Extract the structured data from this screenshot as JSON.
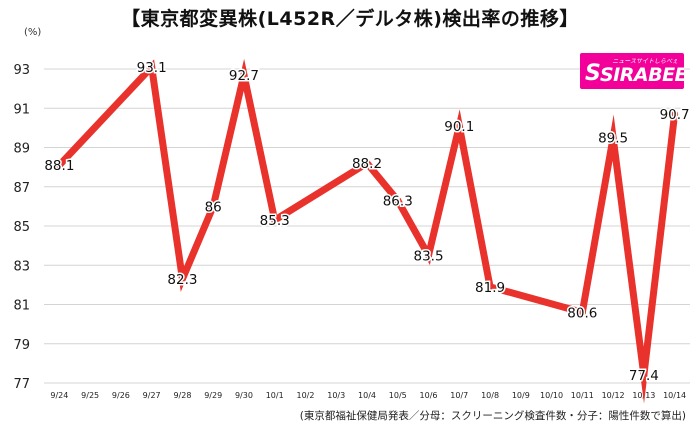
{
  "header": {
    "title": "【東京都変異株(L452R／デルタ株)検出率の推移】",
    "unit": "(%)",
    "source": "(東京都福祉保健局発表／分母：スクリーニング検査件数・分子：陽性件数で算出)"
  },
  "logo": {
    "word": "SIRABEE",
    "mark": "S",
    "tagline": "ニュースサイトしらべぇ"
  },
  "colors": {
    "line": "#e8322b",
    "grid": "#d4d4d4"
  },
  "chart_data": {
    "type": "line",
    "title": "【東京都変異株(L452R／デルタ株)検出率の推移】",
    "ylabel": "(%)",
    "xlabel": "",
    "ylim": [
      77,
      93
    ],
    "yticks": [
      77,
      79,
      81,
      83,
      85,
      87,
      89,
      91,
      93
    ],
    "grid": true,
    "categories": [
      "9/24",
      "9/25",
      "9/26",
      "9/27",
      "9/28",
      "9/29",
      "9/30",
      "10/1",
      "10/2",
      "10/3",
      "10/4",
      "10/5",
      "10/6",
      "10/7",
      "10/8",
      "10/9",
      "10/10",
      "10/11",
      "10/12",
      "10/13",
      "10/14"
    ],
    "points": [
      {
        "x": "9/24",
        "y": 88.1,
        "label": "88.1"
      },
      {
        "x": "9/27",
        "y": 93.1,
        "label": "93.1"
      },
      {
        "x": "9/28",
        "y": 82.3,
        "label": "82.3"
      },
      {
        "x": "9/29",
        "y": 86,
        "label": "86"
      },
      {
        "x": "9/30",
        "y": 92.7,
        "label": "92.7"
      },
      {
        "x": "10/1",
        "y": 85.3,
        "label": "85.3"
      },
      {
        "x": "10/4",
        "y": 88.2,
        "label": "88.2"
      },
      {
        "x": "10/5",
        "y": 86.3,
        "label": "86.3"
      },
      {
        "x": "10/6",
        "y": 83.5,
        "label": "83.5"
      },
      {
        "x": "10/7",
        "y": 90.1,
        "label": "90.1"
      },
      {
        "x": "10/8",
        "y": 81.9,
        "label": "81.9"
      },
      {
        "x": "10/11",
        "y": 80.6,
        "label": "80.6"
      },
      {
        "x": "10/12",
        "y": 89.5,
        "label": "89.5"
      },
      {
        "x": "10/13",
        "y": 77.4,
        "label": "77.4"
      },
      {
        "x": "10/14",
        "y": 90.7,
        "label": "90.7"
      }
    ]
  }
}
